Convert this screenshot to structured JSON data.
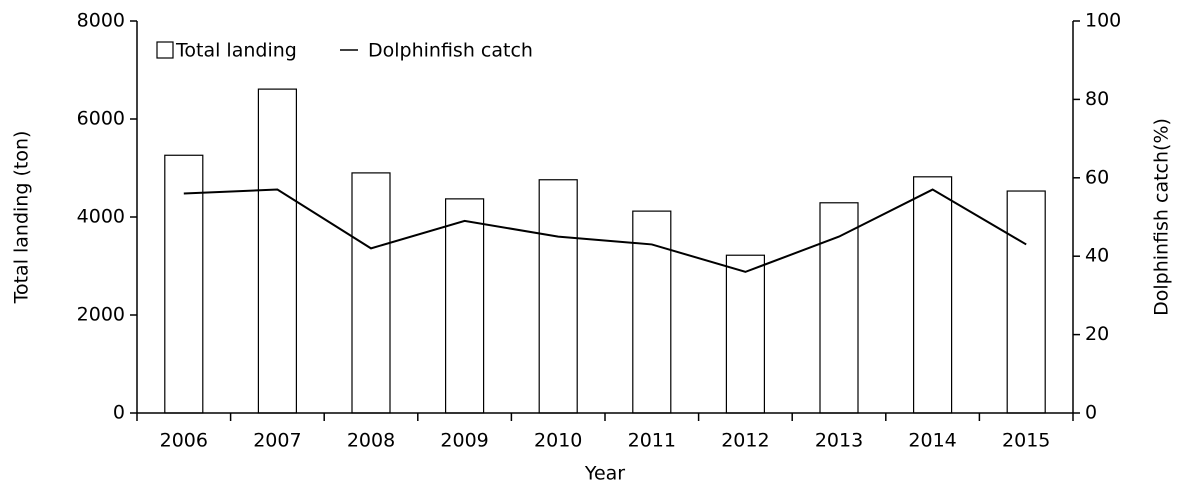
{
  "chart_data": {
    "type": "bar_line",
    "xlabel": "Year",
    "ylabel": "Total landing (ton)",
    "y2label": "Dolphinfish catch(%)",
    "categories": [
      "2006",
      "2007",
      "2008",
      "2009",
      "2010",
      "2011",
      "2012",
      "2013",
      "2014",
      "2015"
    ],
    "series": [
      {
        "name": "Total landing",
        "type": "bar",
        "color": "#ffffff",
        "values": [
          5260,
          6610,
          4900,
          4370,
          4760,
          4120,
          3220,
          4290,
          4820,
          4530
        ]
      },
      {
        "name": "Dolphinfish catch",
        "type": "line",
        "axis": "y2",
        "color": "#000000",
        "values": [
          56,
          57,
          42,
          49,
          45,
          43,
          36,
          45,
          57,
          43
        ]
      }
    ],
    "ylim": [
      0,
      8000
    ],
    "yticks": [
      0,
      2000,
      4000,
      6000,
      8000
    ],
    "y2lim": [
      0,
      100
    ],
    "y2ticks": [
      0,
      20,
      40,
      60,
      80,
      100
    ],
    "legend": "top-left"
  }
}
